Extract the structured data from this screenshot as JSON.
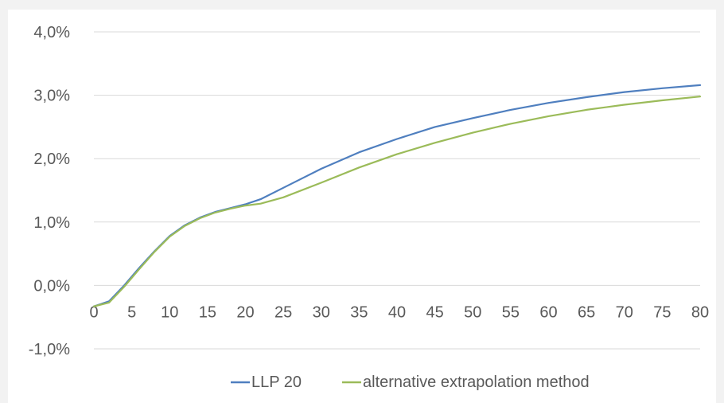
{
  "chart_data": {
    "type": "line",
    "title": "",
    "xlabel": "",
    "ylabel": "",
    "xlim": [
      0,
      80
    ],
    "ylim": [
      -1.0,
      4.0
    ],
    "grid": true,
    "legend_position": "bottom",
    "x_ticks": [
      "0",
      "5",
      "10",
      "15",
      "20",
      "25",
      "30",
      "35",
      "40",
      "45",
      "50",
      "55",
      "60",
      "65",
      "70",
      "75",
      "80"
    ],
    "y_ticks": [
      {
        "value": 4.0,
        "label": "4,0%"
      },
      {
        "value": 3.0,
        "label": "3,0%"
      },
      {
        "value": 2.0,
        "label": "2,0%"
      },
      {
        "value": 1.0,
        "label": "1,0%"
      },
      {
        "value": 0.0,
        "label": "0,0%"
      },
      {
        "value": -1.0,
        "label": "-1,0%"
      }
    ],
    "series": [
      {
        "name": "LLP 20",
        "color": "#4f7fbf",
        "x": [
          0,
          2,
          4,
          6,
          8,
          10,
          12,
          14,
          16,
          18,
          20,
          22,
          25,
          30,
          35,
          40,
          45,
          50,
          55,
          60,
          65,
          70,
          75,
          80
        ],
        "y": [
          -0.33,
          -0.25,
          0.0,
          0.28,
          0.54,
          0.78,
          0.95,
          1.07,
          1.16,
          1.22,
          1.28,
          1.36,
          1.54,
          1.84,
          2.1,
          2.31,
          2.5,
          2.64,
          2.77,
          2.88,
          2.97,
          3.05,
          3.11,
          3.16
        ]
      },
      {
        "name": "alternative extrapolation method",
        "color": "#9bbb59",
        "x": [
          0,
          2,
          4,
          6,
          8,
          10,
          12,
          14,
          16,
          18,
          20,
          22,
          25,
          30,
          35,
          40,
          45,
          50,
          55,
          60,
          65,
          70,
          75,
          80
        ],
        "y": [
          -0.33,
          -0.27,
          -0.02,
          0.26,
          0.53,
          0.77,
          0.94,
          1.06,
          1.15,
          1.21,
          1.26,
          1.29,
          1.39,
          1.62,
          1.86,
          2.07,
          2.25,
          2.41,
          2.55,
          2.67,
          2.77,
          2.85,
          2.92,
          2.98
        ]
      }
    ]
  }
}
